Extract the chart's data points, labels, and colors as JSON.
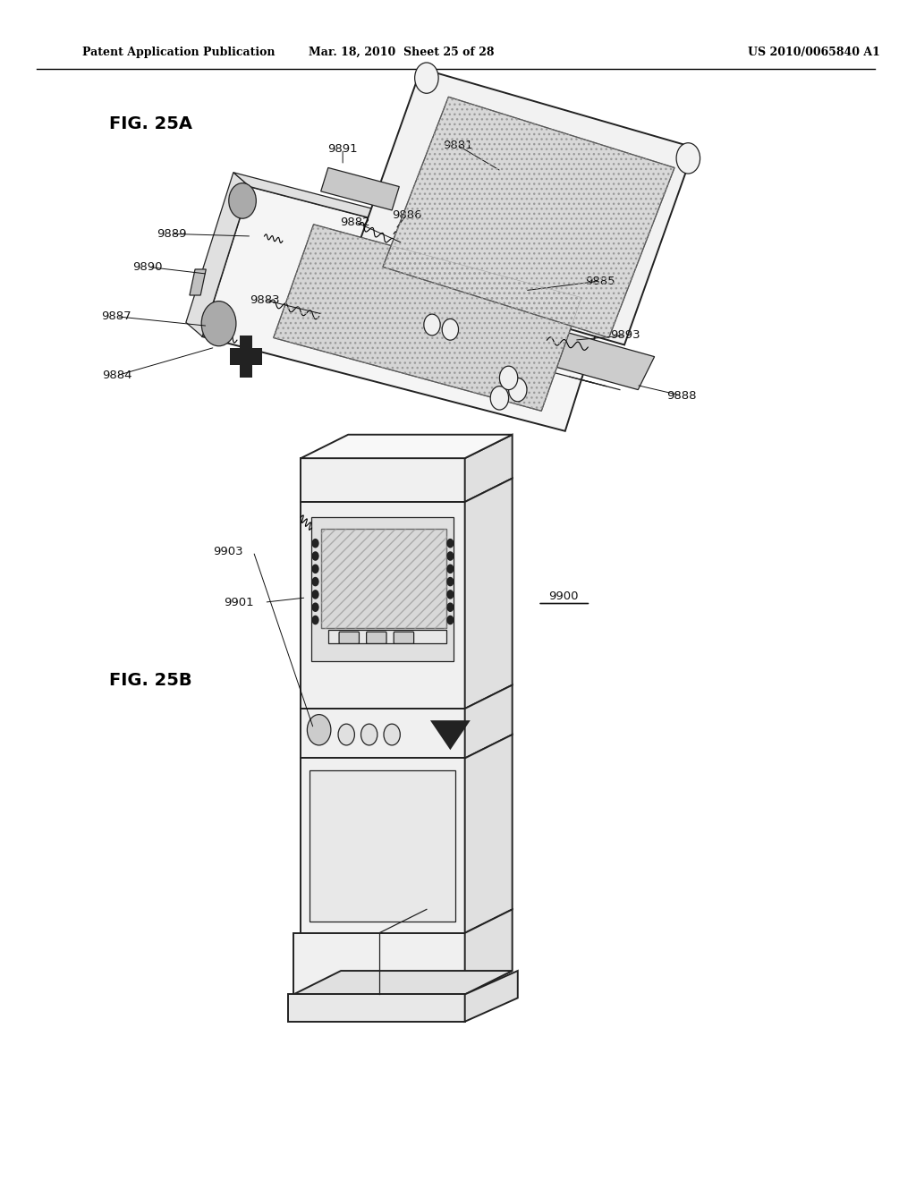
{
  "bg_color": "#ffffff",
  "header_left": "Patent Application Publication",
  "header_mid": "Mar. 18, 2010  Sheet 25 of 28",
  "header_right": "US 2010/0065840 A1",
  "fig_a_label": "FIG. 25A",
  "fig_b_label": "FIG. 25B"
}
